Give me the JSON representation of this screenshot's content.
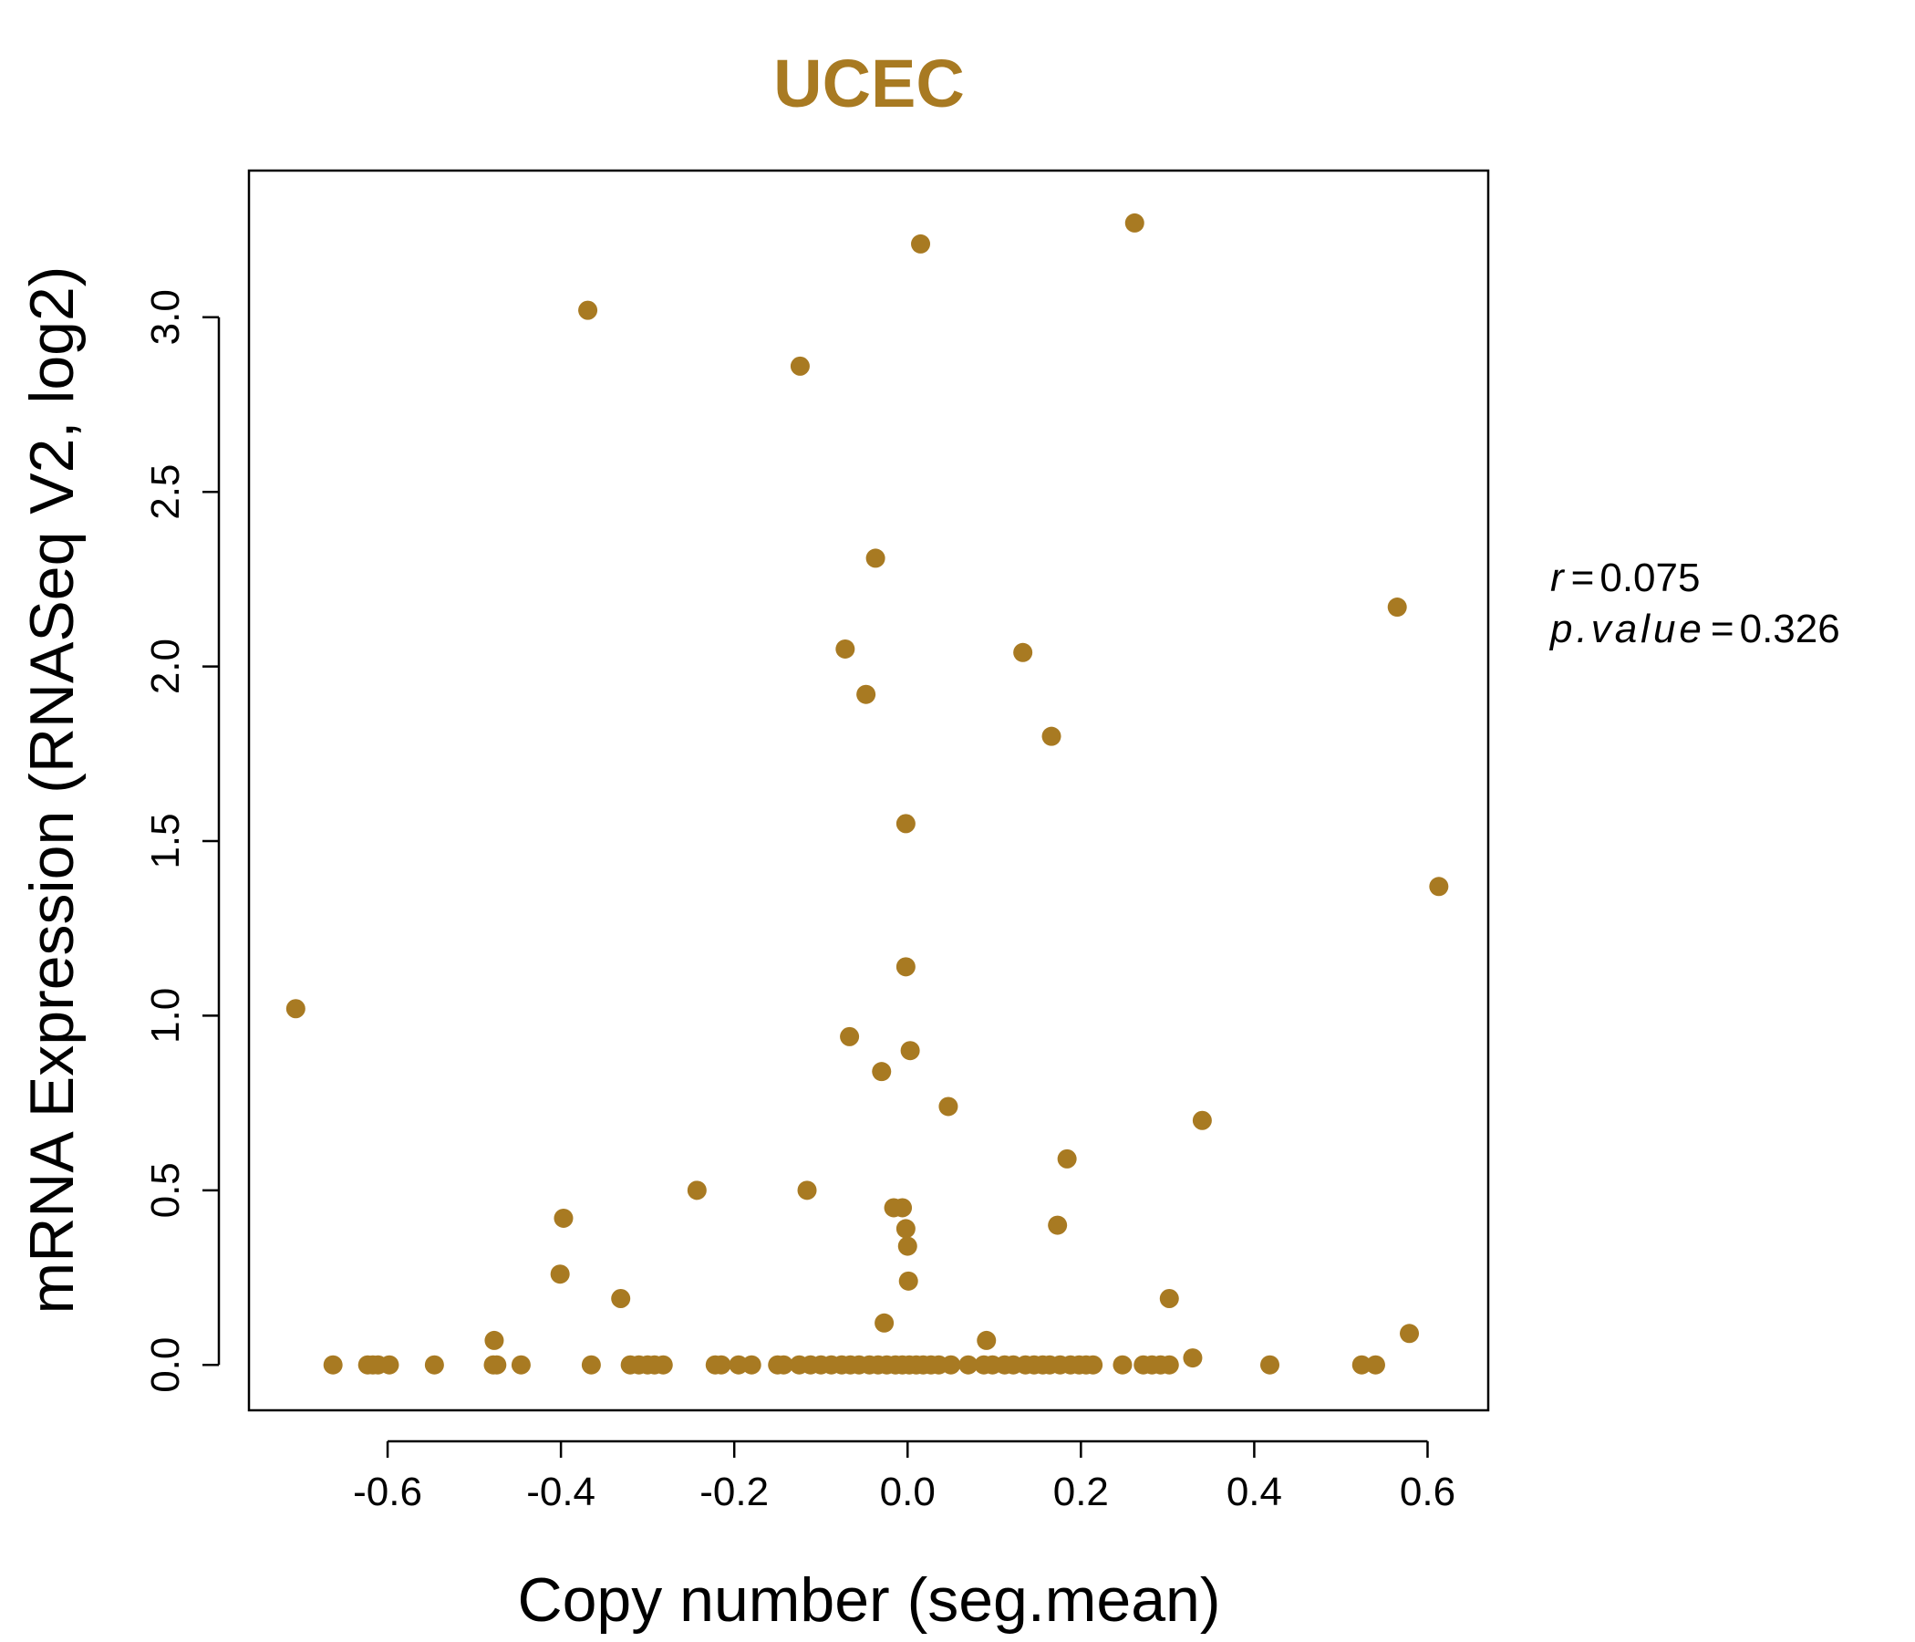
{
  "chart_data": {
    "type": "scatter",
    "title": "UCEC",
    "xlabel": "Copy number (seg.mean)",
    "ylabel": "mRNA Expression (RNASeq V2, log2)",
    "xlim": [
      -0.76,
      0.67
    ],
    "ylim": [
      -0.13,
      3.42
    ],
    "xticks": [
      -0.6,
      -0.4,
      -0.2,
      0.0,
      0.2,
      0.4,
      0.6
    ],
    "xtick_labels": [
      "-0.6",
      "-0.4",
      "-0.2",
      "0.0",
      "0.2",
      "0.4",
      "0.6"
    ],
    "yticks": [
      0.0,
      0.5,
      1.0,
      1.5,
      2.0,
      2.5,
      3.0
    ],
    "ytick_labels": [
      "0.0",
      "0.5",
      "1.0",
      "1.5",
      "2.0",
      "2.5",
      "3.0"
    ],
    "grid": false,
    "legend": "none",
    "point_color": "#A87A22",
    "title_color": "#A87A22",
    "stats": {
      "r_label": "r",
      "r_value": "0.075",
      "p_label": "p.value",
      "p_value": "0.326"
    },
    "points": [
      {
        "x": 0.262,
        "y": 3.27
      },
      {
        "x": 0.015,
        "y": 3.21
      },
      {
        "x": -0.369,
        "y": 3.02
      },
      {
        "x": -0.124,
        "y": 2.86
      },
      {
        "x": -0.037,
        "y": 2.31
      },
      {
        "x": 0.565,
        "y": 2.17
      },
      {
        "x": -0.072,
        "y": 2.05
      },
      {
        "x": 0.133,
        "y": 2.04
      },
      {
        "x": -0.048,
        "y": 1.92
      },
      {
        "x": 0.166,
        "y": 1.8
      },
      {
        "x": -0.002,
        "y": 1.55
      },
      {
        "x": 0.613,
        "y": 1.37
      },
      {
        "x": -0.002,
        "y": 1.14
      },
      {
        "x": -0.706,
        "y": 1.02
      },
      {
        "x": -0.067,
        "y": 0.94
      },
      {
        "x": 0.003,
        "y": 0.9
      },
      {
        "x": -0.03,
        "y": 0.84
      },
      {
        "x": 0.047,
        "y": 0.74
      },
      {
        "x": 0.34,
        "y": 0.7
      },
      {
        "x": 0.184,
        "y": 0.59
      },
      {
        "x": -0.243,
        "y": 0.5
      },
      {
        "x": -0.116,
        "y": 0.5
      },
      {
        "x": -0.016,
        "y": 0.45
      },
      {
        "x": -0.006,
        "y": 0.45
      },
      {
        "x": -0.397,
        "y": 0.42
      },
      {
        "x": 0.173,
        "y": 0.4
      },
      {
        "x": -0.002,
        "y": 0.39
      },
      {
        "x": 0.0,
        "y": 0.34
      },
      {
        "x": -0.401,
        "y": 0.26
      },
      {
        "x": 0.001,
        "y": 0.24
      },
      {
        "x": -0.331,
        "y": 0.19
      },
      {
        "x": 0.302,
        "y": 0.19
      },
      {
        "x": -0.027,
        "y": 0.12
      },
      {
        "x": 0.579,
        "y": 0.09
      },
      {
        "x": -0.477,
        "y": 0.07
      },
      {
        "x": 0.091,
        "y": 0.07
      },
      {
        "x": 0.329,
        "y": 0.02
      },
      {
        "x": -0.663,
        "y": 0.0
      },
      {
        "x": -0.623,
        "y": 0.0
      },
      {
        "x": -0.617,
        "y": 0.0
      },
      {
        "x": -0.611,
        "y": 0.0
      },
      {
        "x": -0.598,
        "y": 0.0
      },
      {
        "x": -0.546,
        "y": 0.0
      },
      {
        "x": -0.478,
        "y": 0.0
      },
      {
        "x": -0.474,
        "y": 0.0
      },
      {
        "x": -0.446,
        "y": 0.0
      },
      {
        "x": -0.365,
        "y": 0.0
      },
      {
        "x": -0.32,
        "y": 0.0
      },
      {
        "x": -0.31,
        "y": 0.0
      },
      {
        "x": -0.3,
        "y": 0.0
      },
      {
        "x": -0.292,
        "y": 0.0
      },
      {
        "x": -0.282,
        "y": 0.0
      },
      {
        "x": -0.222,
        "y": 0.0
      },
      {
        "x": -0.215,
        "y": 0.0
      },
      {
        "x": -0.195,
        "y": 0.0
      },
      {
        "x": -0.18,
        "y": 0.0
      },
      {
        "x": -0.15,
        "y": 0.0
      },
      {
        "x": -0.143,
        "y": 0.0
      },
      {
        "x": -0.125,
        "y": 0.0
      },
      {
        "x": -0.112,
        "y": 0.0
      },
      {
        "x": -0.1,
        "y": 0.0
      },
      {
        "x": -0.088,
        "y": 0.0
      },
      {
        "x": -0.076,
        "y": 0.0
      },
      {
        "x": -0.066,
        "y": 0.0
      },
      {
        "x": -0.056,
        "y": 0.0
      },
      {
        "x": -0.044,
        "y": 0.0
      },
      {
        "x": -0.034,
        "y": 0.0
      },
      {
        "x": -0.024,
        "y": 0.0
      },
      {
        "x": -0.014,
        "y": 0.0
      },
      {
        "x": -0.006,
        "y": 0.0
      },
      {
        "x": 0.002,
        "y": 0.0
      },
      {
        "x": 0.01,
        "y": 0.0
      },
      {
        "x": 0.018,
        "y": 0.0
      },
      {
        "x": 0.027,
        "y": 0.0
      },
      {
        "x": 0.036,
        "y": 0.0
      },
      {
        "x": 0.05,
        "y": 0.0
      },
      {
        "x": 0.07,
        "y": 0.0
      },
      {
        "x": 0.088,
        "y": 0.0
      },
      {
        "x": 0.098,
        "y": 0.0
      },
      {
        "x": 0.112,
        "y": 0.0
      },
      {
        "x": 0.122,
        "y": 0.0
      },
      {
        "x": 0.136,
        "y": 0.0
      },
      {
        "x": 0.146,
        "y": 0.0
      },
      {
        "x": 0.156,
        "y": 0.0
      },
      {
        "x": 0.164,
        "y": 0.0
      },
      {
        "x": 0.176,
        "y": 0.0
      },
      {
        "x": 0.188,
        "y": 0.0
      },
      {
        "x": 0.198,
        "y": 0.0
      },
      {
        "x": 0.206,
        "y": 0.0
      },
      {
        "x": 0.214,
        "y": 0.0
      },
      {
        "x": 0.248,
        "y": 0.0
      },
      {
        "x": 0.272,
        "y": 0.0
      },
      {
        "x": 0.282,
        "y": 0.0
      },
      {
        "x": 0.292,
        "y": 0.0
      },
      {
        "x": 0.302,
        "y": 0.0
      },
      {
        "x": 0.418,
        "y": 0.0
      },
      {
        "x": 0.524,
        "y": 0.0
      },
      {
        "x": 0.54,
        "y": 0.0
      }
    ]
  }
}
